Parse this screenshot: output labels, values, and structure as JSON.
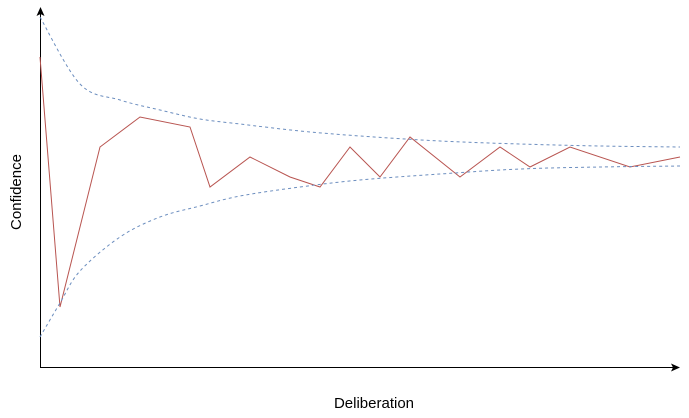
{
  "chart_data": {
    "type": "line",
    "title": "",
    "xlabel": "Deliberation",
    "ylabel": "Confidence",
    "xlim": [
      0,
      64
    ],
    "ylim": [
      0,
      36
    ],
    "grid": false,
    "legend": "none",
    "series": [
      {
        "color": "#b85450",
        "style": "solid",
        "points": [
          [
            0,
            31
          ],
          [
            2,
            6
          ],
          [
            6,
            22
          ],
          [
            10,
            25
          ],
          [
            15,
            24
          ],
          [
            17,
            18
          ],
          [
            21,
            21
          ],
          [
            25,
            19
          ],
          [
            28,
            18
          ],
          [
            31,
            22
          ],
          [
            34,
            19
          ],
          [
            37,
            23
          ],
          [
            42,
            19
          ],
          [
            46,
            22
          ],
          [
            49,
            20
          ],
          [
            53,
            22
          ],
          [
            59,
            20
          ],
          [
            64,
            21
          ]
        ]
      },
      {
        "color": "#6c8ebf",
        "style": "dashed",
        "points": [
          [
            0,
            35
          ],
          [
            4,
            28.3
          ],
          [
            8,
            26.7
          ],
          [
            12,
            25.7
          ],
          [
            16,
            24.8
          ],
          [
            20,
            24.3
          ],
          [
            26,
            23.6
          ],
          [
            32,
            23.1
          ],
          [
            40,
            22.6
          ],
          [
            48,
            22.3
          ],
          [
            56,
            22.1
          ],
          [
            64,
            22
          ]
        ]
      },
      {
        "color": "#6c8ebf",
        "style": "dashed",
        "points": [
          [
            0,
            3
          ],
          [
            2,
            6.4
          ],
          [
            4,
            9.6
          ],
          [
            8,
            13
          ],
          [
            12,
            15
          ],
          [
            16,
            16.1
          ],
          [
            20,
            17.1
          ],
          [
            26,
            18
          ],
          [
            32,
            18.7
          ],
          [
            40,
            19.3
          ],
          [
            48,
            19.8
          ],
          [
            56,
            20
          ],
          [
            64,
            20.1
          ]
        ]
      }
    ]
  }
}
